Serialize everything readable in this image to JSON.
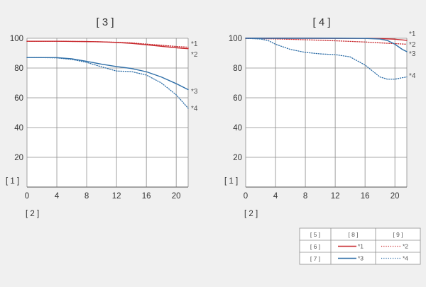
{
  "colors": {
    "background": "#f0f0f0",
    "grid": "#8c8c8c",
    "plot_bg": "#ffffff",
    "red": "#c8282d",
    "blue": "#2f6fa8"
  },
  "chart_data": [
    {
      "type": "line",
      "title": "[ 3 ]",
      "ylabel": "[ 1 ]",
      "xlabel": "[ 2 ]",
      "xlim": [
        0,
        21.6
      ],
      "ylim": [
        0,
        100
      ],
      "xticks": [
        "0",
        "4",
        "8",
        "12",
        "16",
        "20"
      ],
      "yticks": [
        "20",
        "40",
        "60",
        "80",
        "100"
      ],
      "grid": true,
      "series": [
        {
          "name": "*1",
          "style": "solid",
          "color": "#c8282d",
          "x": [
            0,
            2,
            4,
            6,
            8,
            10,
            12,
            14,
            16,
            18,
            20,
            21.6
          ],
          "y": [
            98,
            98,
            98,
            97.9,
            97.8,
            97.6,
            97.2,
            96.6,
            95.6,
            94.6,
            93.6,
            93
          ]
        },
        {
          "name": "*2",
          "style": "dotted",
          "color": "#c8282d",
          "x": [
            0,
            2,
            4,
            6,
            8,
            10,
            12,
            14,
            16,
            18,
            20,
            21.6
          ],
          "y": [
            98,
            98,
            98,
            97.9,
            97.8,
            97.6,
            97.3,
            96.9,
            96.1,
            95.3,
            94.5,
            94
          ]
        },
        {
          "name": "*3",
          "style": "solid",
          "color": "#2f6fa8",
          "x": [
            0,
            2,
            4,
            6,
            8,
            10,
            12,
            14,
            16,
            18,
            20,
            21.6
          ],
          "y": [
            87,
            87,
            87,
            86.2,
            84.5,
            82.6,
            81,
            79.7,
            77.5,
            74,
            69.5,
            65.5
          ]
        },
        {
          "name": "*4",
          "style": "dotted",
          "color": "#2f6fa8",
          "x": [
            0,
            2,
            4,
            6,
            8,
            10,
            12,
            13,
            14,
            16,
            18,
            20,
            21.6
          ],
          "y": [
            87,
            87,
            86.8,
            85.8,
            83.8,
            80.8,
            78,
            77.8,
            77.6,
            75.3,
            70,
            62,
            53
          ]
        }
      ],
      "end_labels": [
        "*1",
        "*2",
        "*3",
        "*4"
      ]
    },
    {
      "type": "line",
      "title": "[ 4 ]",
      "ylabel": "[ 1 ]",
      "xlabel": "[ 2 ]",
      "xlim": [
        0,
        21.6
      ],
      "ylim": [
        0,
        100
      ],
      "xticks": [
        "0",
        "4",
        "8",
        "12",
        "16",
        "20"
      ],
      "yticks": [
        "20",
        "40",
        "60",
        "80",
        "100"
      ],
      "grid": true,
      "series": [
        {
          "name": "*1",
          "style": "solid",
          "color": "#c8282d",
          "x": [
            0,
            4,
            8,
            12,
            16,
            18,
            20,
            21.6
          ],
          "y": [
            100,
            100,
            100,
            99.9,
            99.9,
            99.8,
            99.4,
            98.6
          ]
        },
        {
          "name": "*2",
          "style": "dotted",
          "color": "#c8282d",
          "x": [
            0,
            4,
            8,
            12,
            16,
            18,
            20,
            21.6
          ],
          "y": [
            99.9,
            99.6,
            99,
            98.3,
            97.5,
            96.9,
            96.4,
            96
          ]
        },
        {
          "name": "*3",
          "style": "solid",
          "color": "#2f6fa8",
          "x": [
            0,
            4,
            8,
            12,
            16,
            18,
            19,
            20,
            21,
            21.6
          ],
          "y": [
            100,
            100,
            100,
            100,
            99.9,
            99.5,
            98.5,
            96,
            92.5,
            91
          ]
        },
        {
          "name": "*4",
          "style": "dotted",
          "color": "#2f6fa8",
          "x": [
            0,
            2,
            3,
            4,
            6,
            8,
            10,
            12,
            14,
            16,
            17,
            18,
            19,
            20,
            21,
            21.6
          ],
          "y": [
            100,
            99.5,
            98.5,
            96,
            92.5,
            90.5,
            89.5,
            89,
            87.5,
            82,
            78,
            74,
            72.5,
            72.5,
            73.5,
            74
          ]
        }
      ],
      "end_labels": [
        "*1",
        "*2",
        "*3",
        "*4"
      ]
    }
  ],
  "legend": {
    "headers": [
      "[ 5 ]",
      "[ 8 ]",
      "[ 9 ]"
    ],
    "rows": [
      {
        "label": "[ 6 ]",
        "color": "#c8282d",
        "solid": "*1",
        "dotted": "*2"
      },
      {
        "label": "[ 7 ]",
        "color": "#2f6fa8",
        "solid": "*3",
        "dotted": "*4"
      }
    ]
  }
}
